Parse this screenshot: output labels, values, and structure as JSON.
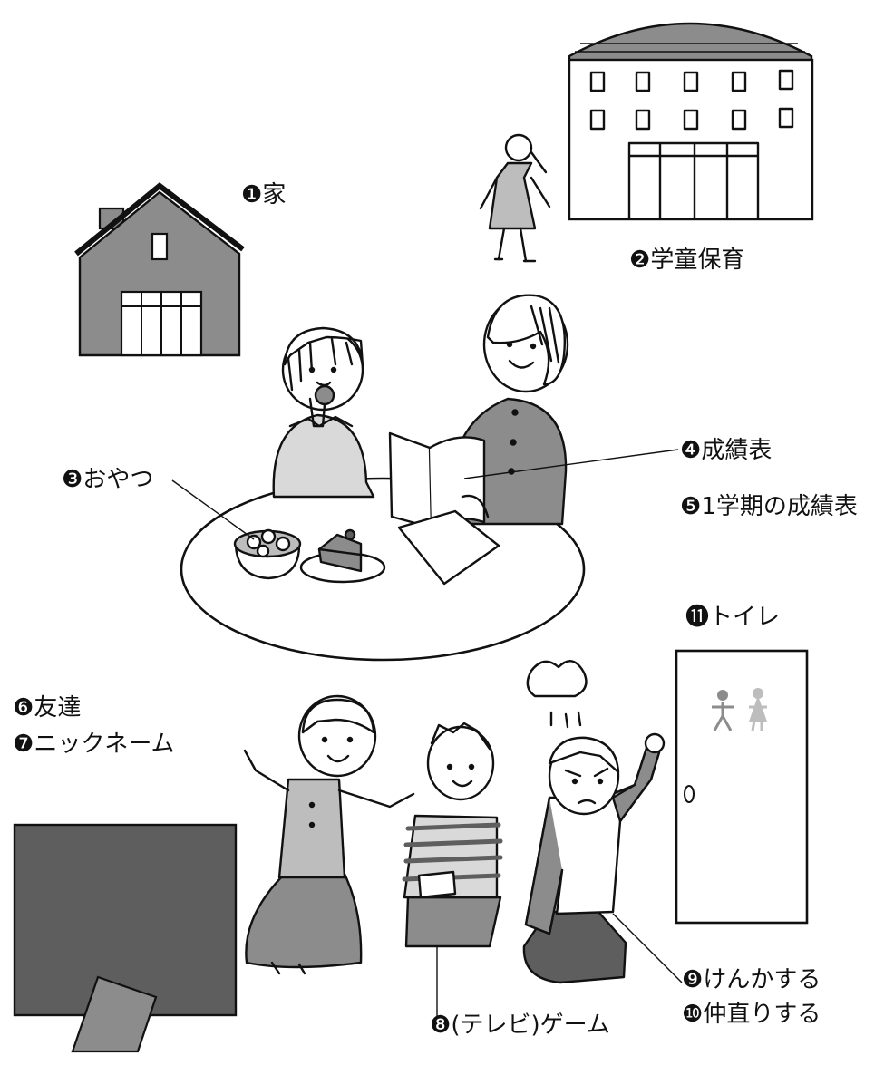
{
  "labels": {
    "house": {
      "num": "❶",
      "text": "家"
    },
    "gakudo": {
      "num": "❷",
      "text": "学童保育"
    },
    "snack": {
      "num": "❸",
      "text": "おやつ"
    },
    "report_card": {
      "num": "❹",
      "text": "成績表"
    },
    "first_term_report": {
      "num": "❺",
      "text": "1学期の成績表"
    },
    "friend": {
      "num": "❻",
      "text": "友達"
    },
    "nickname": {
      "num": "❼",
      "text": "ニックネーム"
    },
    "tv_game": {
      "num": "❽",
      "text": "(テレビ)ゲーム"
    },
    "quarrel": {
      "num": "❾",
      "text": "けんかする"
    },
    "make_up": {
      "num": "❿",
      "text": "仲直りする"
    },
    "toilet": {
      "num": "⓫",
      "text": "トイレ"
    }
  },
  "colors": {
    "ink": "#111111",
    "gray_dark": "#5e5e5e",
    "gray_mid": "#8c8c8c",
    "gray_light": "#bdbdbd",
    "gray_pale": "#d9d9d9"
  }
}
